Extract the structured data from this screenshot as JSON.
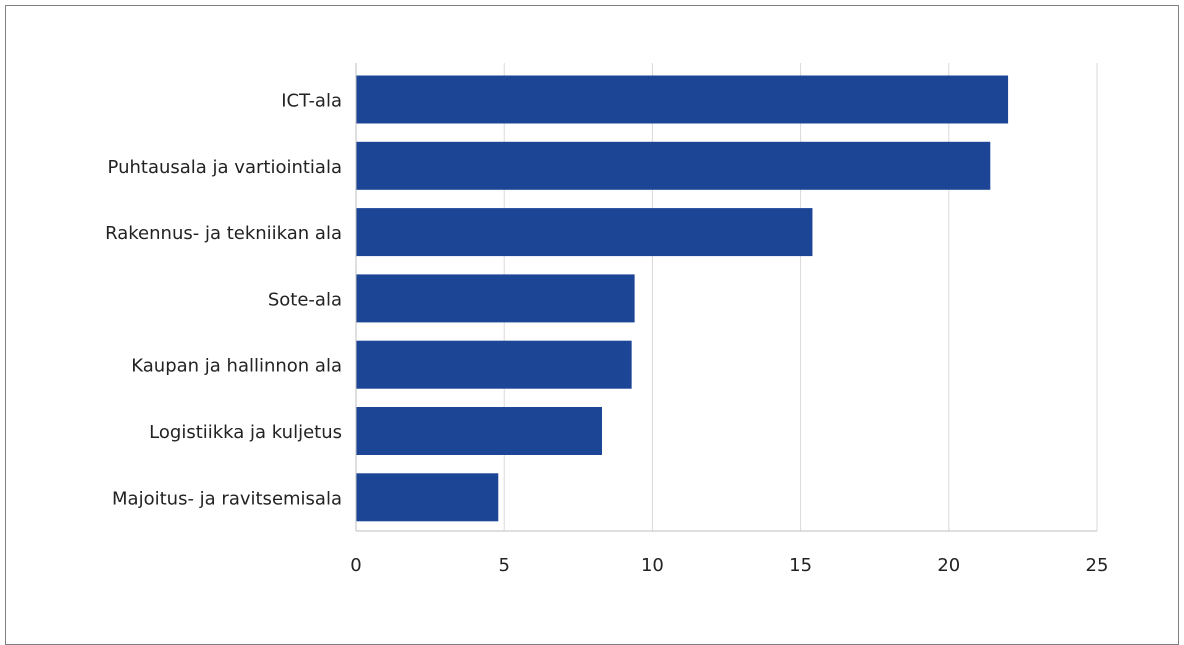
{
  "chart_data": {
    "type": "bar",
    "orientation": "horizontal",
    "categories": [
      "ICT-ala",
      "Puhtausala ja vartiointiala",
      "Rakennus- ja tekniikan ala",
      "Sote-ala",
      "Kaupan ja hallinnon ala",
      "Logistiikka ja kuljetus",
      "Majoitus- ja ravitsemisala"
    ],
    "values": [
      22.0,
      21.4,
      15.4,
      9.4,
      9.3,
      8.3,
      4.8
    ],
    "x_ticks": [
      "0",
      "5",
      "10",
      "15",
      "20",
      "25"
    ],
    "xlim": [
      0,
      25
    ],
    "grid": "vertical",
    "legend": "none",
    "title": "",
    "xlabel": "",
    "ylabel": "",
    "colors": {
      "bar": "#1d4596",
      "grid": "#d9d9d9",
      "axis": "#bfbfbf",
      "frame": "#7f7f7f"
    }
  }
}
